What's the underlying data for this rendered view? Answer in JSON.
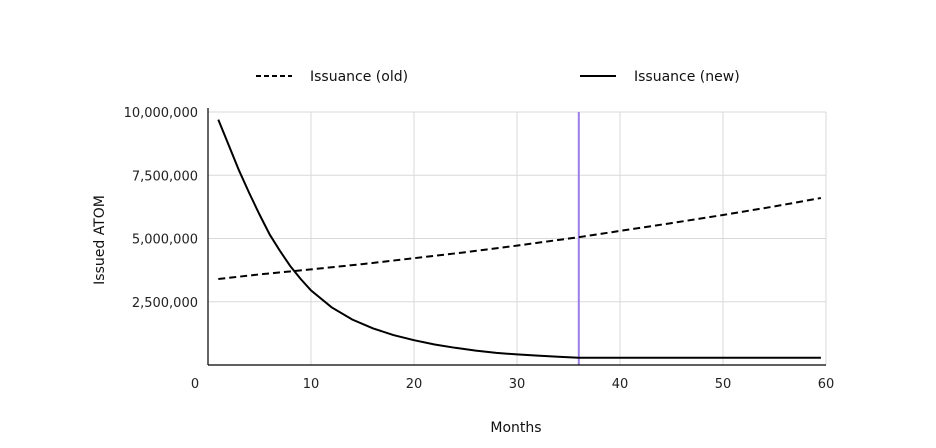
{
  "chart_data": {
    "type": "line",
    "title": "",
    "xlabel": "Months",
    "ylabel": "Issued ATOM",
    "xlim": [
      0,
      60
    ],
    "ylim": [
      0,
      10000000
    ],
    "x_ticks": [
      0,
      10,
      20,
      30,
      40,
      50,
      60
    ],
    "x_tick_labels": [
      "0",
      "10",
      "20",
      "30",
      "40",
      "50",
      "60"
    ],
    "y_ticks": [
      2500000,
      5000000,
      7500000,
      10000000
    ],
    "y_tick_labels": [
      "2,500,000",
      "5,000,000",
      "7,500,000",
      "10,000,000"
    ],
    "grid": true,
    "legend_position": "top",
    "reference_line": {
      "axis": "x",
      "value": 36,
      "color": "#9b7fe6"
    },
    "series": [
      {
        "name": "Issuance (old)",
        "style": "dashed",
        "color": "#000000",
        "x": [
          1,
          5,
          10,
          15,
          20,
          25,
          30,
          36,
          40,
          45,
          50,
          55,
          59.5
        ],
        "values": [
          3400000,
          3580000,
          3780000,
          3990000,
          4220000,
          4460000,
          4720000,
          5050000,
          5300000,
          5610000,
          5930000,
          6270000,
          6600000
        ]
      },
      {
        "name": "Issuance (new)",
        "style": "solid",
        "color": "#000000",
        "x": [
          1,
          2,
          3,
          4,
          5,
          6,
          7,
          8,
          9,
          10,
          12,
          14,
          16,
          18,
          20,
          22,
          24,
          26,
          28,
          30,
          32,
          34,
          36,
          40,
          45,
          50,
          55,
          59.5
        ],
        "values": [
          9700000,
          8700000,
          7700000,
          6800000,
          5950000,
          5150000,
          4500000,
          3900000,
          3400000,
          2950000,
          2280000,
          1800000,
          1450000,
          1180000,
          980000,
          810000,
          680000,
          570000,
          480000,
          420000,
          370000,
          330000,
          290000,
          290000,
          290000,
          290000,
          290000,
          290000
        ]
      }
    ]
  }
}
